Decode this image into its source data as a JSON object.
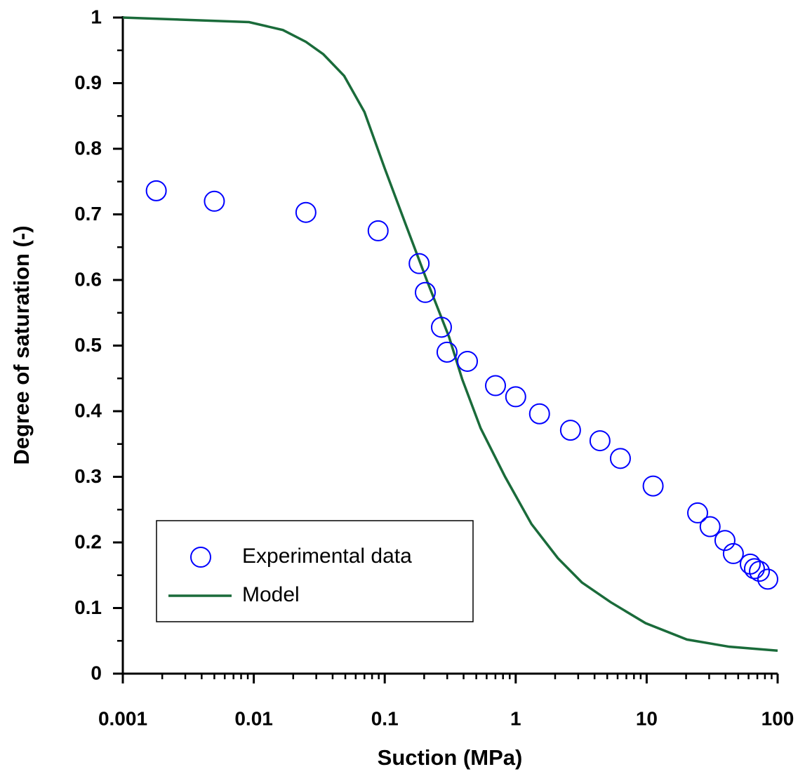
{
  "chart_data": {
    "type": "scatter-line",
    "x_label": "Suction (MPa)",
    "y_label": "Degree of saturation (-)",
    "xscale": "log",
    "xlim": [
      0.001,
      100
    ],
    "xticks": [
      0.001,
      0.01,
      0.1,
      1,
      10,
      100
    ],
    "ylim": [
      0,
      1
    ],
    "yticks": [
      0,
      0.1,
      0.2,
      0.3,
      0.4,
      0.5,
      0.6,
      0.7,
      0.8,
      0.9,
      1
    ],
    "grid": false,
    "legend": "lower left",
    "series": [
      {
        "name": "Experimental data",
        "type": "scatter",
        "color": "#0000ff",
        "x": [
          0.0018,
          0.005,
          0.025,
          0.089,
          0.183,
          0.204,
          0.271,
          0.299,
          0.428,
          0.701,
          1.0,
          1.52,
          2.62,
          4.4,
          6.3,
          11.2,
          24.5,
          30.5,
          39.6,
          45.9,
          61.8,
          66.5,
          72.6,
          84.1
        ],
        "values": [
          0.736,
          0.72,
          0.703,
          0.675,
          0.625,
          0.581,
          0.528,
          0.49,
          0.476,
          0.439,
          0.422,
          0.396,
          0.371,
          0.355,
          0.328,
          0.286,
          0.245,
          0.224,
          0.203,
          0.183,
          0.167,
          0.16,
          0.156,
          0.144
        ]
      },
      {
        "name": "Model",
        "type": "line",
        "color": "#1a6b3a",
        "x": [
          0.001,
          0.0092,
          0.0167,
          0.025,
          0.034,
          0.049,
          0.07,
          0.1,
          0.145,
          0.21,
          0.31,
          0.39,
          0.54,
          0.83,
          1.32,
          2.1,
          3.2,
          5.3,
          9.8,
          20.3,
          42.8,
          100
        ],
        "values": [
          1,
          0.993,
          0.981,
          0.963,
          0.944,
          0.911,
          0.856,
          0.77,
          0.684,
          0.599,
          0.513,
          0.449,
          0.374,
          0.3,
          0.228,
          0.176,
          0.139,
          0.109,
          0.077,
          0.052,
          0.041,
          0.035
        ]
      }
    ]
  }
}
